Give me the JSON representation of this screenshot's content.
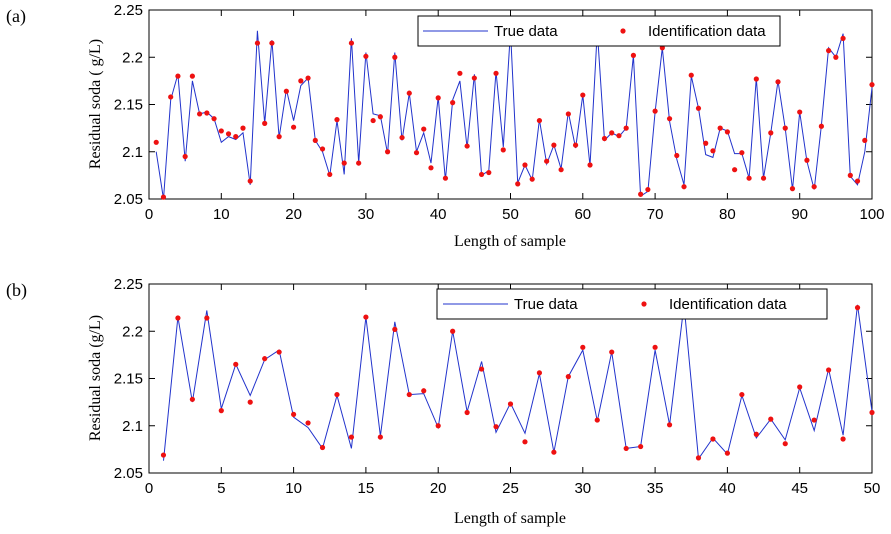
{
  "chart_data": [
    {
      "panel_label": "(a)",
      "type": "line",
      "xlabel": "Length of sample",
      "ylabel": "Residual soda ( g/L)",
      "xlim": [
        0,
        100
      ],
      "ylim": [
        2.05,
        2.25
      ],
      "xticks": [
        "0",
        "10",
        "20",
        "30",
        "40",
        "50",
        "60",
        "70",
        "80",
        "90",
        "100"
      ],
      "yticks": [
        "2.05",
        "2.1",
        "2.15",
        "2.2",
        "2.25"
      ],
      "legend": {
        "placement": "top-right",
        "true_label": "True data",
        "ident_label": "Identification data"
      },
      "series": [
        {
          "name": "True data",
          "x": [
            1,
            2,
            3,
            4,
            5,
            6,
            7,
            8,
            9,
            10,
            11,
            12,
            13,
            14,
            15,
            16,
            17,
            18,
            19,
            20,
            21,
            22,
            23,
            24,
            25,
            26,
            27,
            28,
            29,
            30,
            31,
            32,
            33,
            34,
            35,
            36,
            37,
            38,
            39,
            40,
            41,
            42,
            43,
            44,
            45,
            46,
            47,
            48,
            49,
            50,
            51,
            52,
            53,
            54,
            55,
            56,
            57,
            58,
            59,
            60,
            61,
            62,
            63,
            64,
            65,
            66,
            67,
            68,
            69,
            70,
            71,
            72,
            73,
            74,
            75,
            76,
            77,
            78,
            79,
            80,
            81,
            82,
            83,
            84,
            85,
            86,
            87,
            88,
            89,
            90,
            91,
            92,
            93,
            94,
            95,
            96,
            97,
            98,
            99,
            100
          ],
          "values": [
            2.1,
            2.05,
            2.155,
            2.182,
            2.09,
            2.175,
            2.14,
            2.142,
            2.135,
            2.11,
            2.116,
            2.113,
            2.12,
            2.065,
            2.228,
            2.13,
            2.218,
            2.115,
            2.166,
            2.133,
            2.17,
            2.178,
            2.112,
            2.1,
            2.075,
            2.133,
            2.076,
            2.22,
            2.088,
            2.205,
            2.14,
            2.138,
            2.098,
            2.205,
            2.112,
            2.162,
            2.1,
            2.12,
            2.088,
            2.158,
            2.07,
            2.155,
            2.175,
            2.104,
            2.182,
            2.075,
            2.08,
            2.185,
            2.105,
            2.228,
            2.067,
            2.086,
            2.07,
            2.134,
            2.087,
            2.107,
            2.082,
            2.142,
            2.104,
            2.16,
            2.085,
            2.228,
            2.112,
            2.12,
            2.116,
            2.125,
            2.202,
            2.053,
            2.058,
            2.142,
            2.21,
            2.132,
            2.092,
            2.065,
            2.18,
            2.146,
            2.097,
            2.094,
            2.125,
            2.122,
            2.098,
            2.098,
            2.072,
            2.178,
            2.072,
            2.12,
            2.175,
            2.125,
            2.06,
            2.142,
            2.09,
            2.06,
            2.128,
            2.21,
            2.2,
            2.225,
            2.074,
            2.065,
            2.1,
            2.168
          ]
        },
        {
          "name": "Identification data",
          "x": [
            1,
            2,
            3,
            4,
            5,
            6,
            7,
            8,
            9,
            10,
            11,
            12,
            13,
            14,
            15,
            16,
            17,
            18,
            19,
            20,
            21,
            22,
            23,
            24,
            25,
            26,
            27,
            28,
            29,
            30,
            31,
            32,
            33,
            34,
            35,
            36,
            37,
            38,
            39,
            40,
            41,
            42,
            43,
            44,
            45,
            46,
            47,
            48,
            49,
            50,
            51,
            52,
            53,
            54,
            55,
            56,
            57,
            58,
            59,
            60,
            61,
            62,
            63,
            64,
            65,
            66,
            67,
            68,
            69,
            70,
            71,
            72,
            73,
            74,
            75,
            76,
            77,
            78,
            79,
            80,
            81,
            82,
            83,
            84,
            85,
            86,
            87,
            88,
            89,
            90,
            91,
            92,
            93,
            94,
            95,
            96,
            97,
            98,
            99,
            100
          ],
          "values": [
            2.11,
            2.052,
            2.158,
            2.18,
            2.095,
            2.18,
            2.14,
            2.141,
            2.135,
            2.122,
            2.119,
            2.116,
            2.125,
            2.069,
            2.215,
            2.13,
            2.215,
            2.116,
            2.164,
            2.126,
            2.175,
            2.178,
            2.112,
            2.103,
            2.076,
            2.134,
            2.088,
            2.215,
            2.088,
            2.201,
            2.133,
            2.137,
            2.1,
            2.2,
            2.115,
            2.162,
            2.099,
            2.124,
            2.083,
            2.157,
            2.072,
            2.152,
            2.183,
            2.106,
            2.178,
            2.076,
            2.078,
            2.183,
            2.102,
            2.22,
            2.066,
            2.086,
            2.071,
            2.133,
            2.09,
            2.107,
            2.081,
            2.14,
            2.107,
            2.16,
            2.086,
            2.22,
            2.114,
            2.12,
            2.117,
            2.125,
            2.202,
            2.055,
            2.06,
            2.143,
            2.21,
            2.135,
            2.096,
            2.063,
            2.181,
            2.146,
            2.109,
            2.101,
            2.125,
            2.121,
            2.081,
            2.099,
            2.072,
            2.177,
            2.072,
            2.12,
            2.174,
            2.125,
            2.061,
            2.142,
            2.091,
            2.063,
            2.127,
            2.207,
            2.2,
            2.22,
            2.075,
            2.069,
            2.112,
            2.171
          ]
        }
      ]
    },
    {
      "panel_label": "(b)",
      "type": "line",
      "xlabel": "Length of sample",
      "ylabel": "Residual soda (g/L)",
      "xlim": [
        0,
        50
      ],
      "ylim": [
        2.05,
        2.25
      ],
      "xticks": [
        "0",
        "5",
        "10",
        "15",
        "20",
        "25",
        "30",
        "35",
        "40",
        "45",
        "50"
      ],
      "yticks": [
        "2.05",
        "2.1",
        "2.15",
        "2.2",
        "2.25"
      ],
      "legend": {
        "placement": "top-right",
        "true_label": "True data",
        "ident_label": "Identification data"
      },
      "series": [
        {
          "name": "True data",
          "x": [
            1,
            2,
            3,
            4,
            5,
            6,
            7,
            8,
            9,
            10,
            11,
            12,
            13,
            14,
            15,
            16,
            17,
            18,
            19,
            20,
            21,
            22,
            23,
            24,
            25,
            26,
            27,
            28,
            29,
            30,
            31,
            32,
            33,
            34,
            35,
            36,
            37,
            38,
            39,
            40,
            41,
            42,
            43,
            44,
            45,
            46,
            47,
            48,
            49,
            50
          ],
          "values": [
            2.063,
            2.215,
            2.125,
            2.222,
            2.118,
            2.165,
            2.132,
            2.17,
            2.18,
            2.109,
            2.098,
            2.076,
            2.132,
            2.076,
            2.215,
            2.089,
            2.21,
            2.133,
            2.134,
            2.098,
            2.2,
            2.115,
            2.168,
            2.093,
            2.124,
            2.092,
            2.155,
            2.072,
            2.152,
            2.18,
            2.105,
            2.178,
            2.076,
            2.078,
            2.18,
            2.101,
            2.228,
            2.065,
            2.087,
            2.07,
            2.132,
            2.087,
            2.107,
            2.085,
            2.14,
            2.095,
            2.16,
            2.09,
            2.228,
            2.115
          ]
        },
        {
          "name": "Identification data",
          "x": [
            1,
            2,
            3,
            4,
            5,
            6,
            7,
            8,
            9,
            10,
            11,
            12,
            13,
            14,
            15,
            16,
            17,
            18,
            19,
            20,
            21,
            22,
            23,
            24,
            25,
            26,
            27,
            28,
            29,
            30,
            31,
            32,
            33,
            34,
            35,
            36,
            37,
            38,
            39,
            40,
            41,
            42,
            43,
            44,
            45,
            46,
            47,
            48,
            49,
            50
          ],
          "values": [
            2.069,
            2.214,
            2.128,
            2.214,
            2.116,
            2.165,
            2.125,
            2.171,
            2.178,
            2.112,
            2.103,
            2.077,
            2.133,
            2.088,
            2.215,
            2.088,
            2.202,
            2.133,
            2.137,
            2.1,
            2.2,
            2.114,
            2.16,
            2.099,
            2.123,
            2.083,
            2.156,
            2.072,
            2.152,
            2.183,
            2.106,
            2.178,
            2.076,
            2.078,
            2.183,
            2.101,
            2.22,
            2.066,
            2.086,
            2.071,
            2.133,
            2.091,
            2.107,
            2.081,
            2.141,
            2.106,
            2.159,
            2.086,
            2.225,
            2.114
          ]
        }
      ]
    }
  ]
}
